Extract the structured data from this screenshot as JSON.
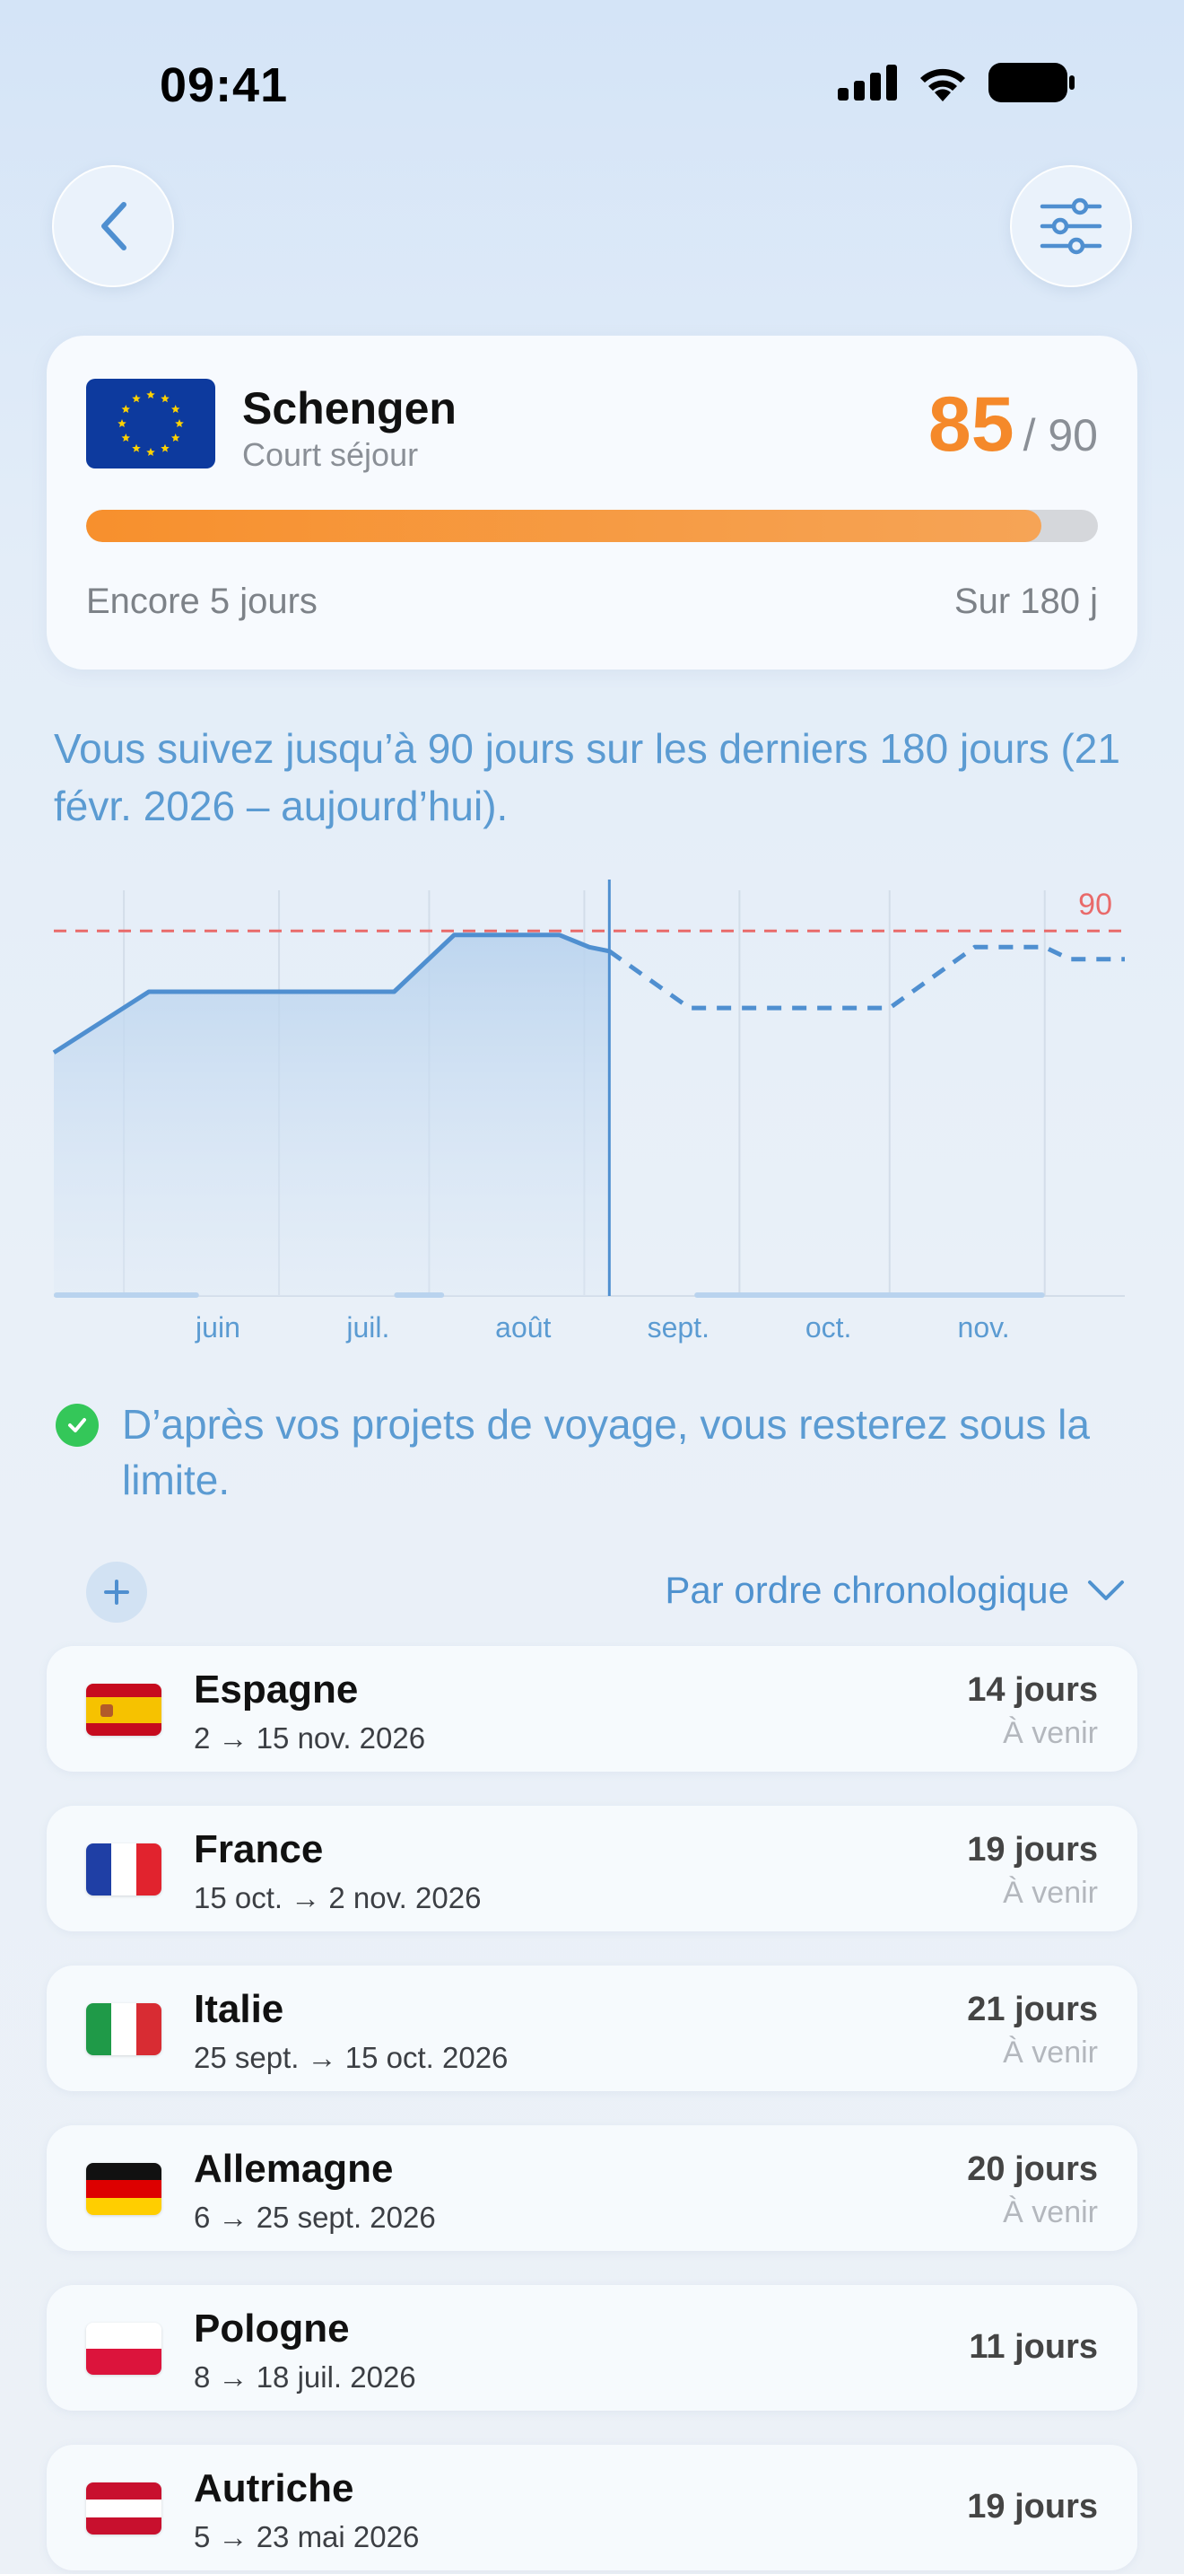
{
  "status_bar": {
    "time": "09:41"
  },
  "summary": {
    "title": "Schengen",
    "subtitle": "Court séjour",
    "used": "85",
    "limit": "/ 90",
    "progress_fraction": 0.944,
    "remaining_label": "Encore 5 jours",
    "window_label": "Sur 180 j"
  },
  "info_text": "Vous suivez jusqu’à 90 jours sur les derniers 180 jours (21 févr. 2026 – aujourd’hui).",
  "chart_data": {
    "type": "line",
    "title": "",
    "xlabel": "",
    "ylabel": "",
    "x_ticks": [
      "juin",
      "juil.",
      "août",
      "sept.",
      "oct.",
      "nov."
    ],
    "limit_line": {
      "value": 90,
      "label": "90",
      "color": "#e96a6a"
    },
    "today_marker": "août",
    "series": [
      {
        "style": "solid",
        "x": [
          "2026-05-01",
          "2026-05-20",
          "2026-06-10",
          "2026-07-08",
          "2026-07-20",
          "2026-08-10",
          "2026-08-16",
          "2026-08-20"
        ],
        "y": [
          60,
          75,
          75,
          75,
          89,
          89,
          86,
          85
        ]
      },
      {
        "style": "dashed",
        "x": [
          "2026-08-20",
          "2026-09-05",
          "2026-10-15",
          "2026-11-01",
          "2026-11-15",
          "2026-11-20",
          "2026-12-01"
        ],
        "y": [
          85,
          71,
          71,
          86,
          86,
          83,
          83
        ]
      }
    ],
    "ylim": [
      0,
      100
    ],
    "grid": true,
    "colors": {
      "line": "#4f8fd0",
      "fill": "#b9d3ee"
    }
  },
  "notice_text": "D’après vos projets de voyage, vous resterez sous la limite.",
  "sort_label": "Par ordre chronologique",
  "trips": [
    {
      "name": "Espagne",
      "dates": "2 → 15 nov. 2026",
      "days": "14 jours",
      "status": "À venir",
      "flag": "es"
    },
    {
      "name": "France",
      "dates": "15 oct. → 2 nov. 2026",
      "days": "19 jours",
      "status": "À venir",
      "flag": "fr"
    },
    {
      "name": "Italie",
      "dates": "25 sept. → 15 oct. 2026",
      "days": "21 jours",
      "status": "À venir",
      "flag": "it"
    },
    {
      "name": "Allemagne",
      "dates": "6 → 25 sept. 2026",
      "days": "20 jours",
      "status": "À venir",
      "flag": "de"
    },
    {
      "name": "Pologne",
      "dates": "8 → 18 juil. 2026",
      "days": "11 jours",
      "status": "",
      "flag": "pl"
    },
    {
      "name": "Autriche",
      "dates": "5 → 23 mai 2026",
      "days": "19 jours",
      "status": "",
      "flag": "at"
    }
  ]
}
